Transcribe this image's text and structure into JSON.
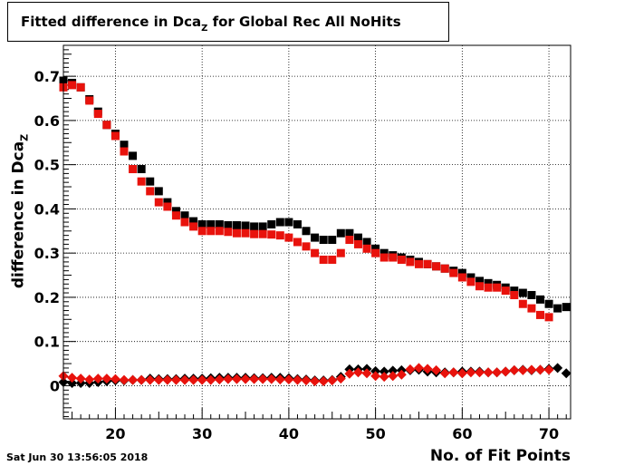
{
  "title": {
    "prefix": "Fitted difference in Dca",
    "sub": "Z",
    "suffix": " for Global Rec All NoHits"
  },
  "axis_label_y": {
    "main": "difference in Dca",
    "sub": "Z"
  },
  "axis_label_x": "No. of Fit Points",
  "timestamp": "Sat Jun 30 13:56:05 2018",
  "colors": {
    "black_series": "#000000",
    "red_series": "#e8120c",
    "grid": "#000000"
  },
  "chart_data": {
    "type": "scatter",
    "title": "Fitted difference in Dca_Z for Global Rec All NoHits",
    "xlabel": "No. of Fit Points",
    "ylabel": "difference in Dca_Z",
    "xlim": [
      14,
      72.5
    ],
    "ylim": [
      -0.075,
      0.77
    ],
    "grid": true,
    "x_ticks": [
      20,
      30,
      40,
      50,
      60,
      70
    ],
    "x_tick_labels": [
      "20",
      "30",
      "40",
      "50",
      "60",
      "70"
    ],
    "y_ticks": [
      0,
      0.1,
      0.2,
      0.3,
      0.4,
      0.5,
      0.6,
      0.7
    ],
    "y_tick_labels": [
      "0",
      "0.1",
      "0.2",
      "0.3",
      "0.4",
      "0.5",
      "0.6",
      "0.7"
    ],
    "series": [
      {
        "marker": "square",
        "color": "#000000",
        "x": [
          14,
          15,
          16,
          17,
          18,
          19,
          20,
          21,
          22,
          23,
          24,
          25,
          26,
          27,
          28,
          29,
          30,
          31,
          32,
          33,
          34,
          35,
          36,
          37,
          38,
          39,
          40,
          41,
          42,
          43,
          44,
          45,
          46,
          47,
          48,
          49,
          50,
          51,
          52,
          53,
          54,
          55,
          56,
          57,
          58,
          59,
          60,
          61,
          62,
          63,
          64,
          65,
          66,
          67,
          68,
          69,
          70,
          71,
          72
        ],
        "y": [
          0.69,
          0.685,
          0.675,
          0.648,
          0.62,
          0.59,
          0.57,
          0.545,
          0.52,
          0.49,
          0.462,
          0.44,
          0.415,
          0.395,
          0.385,
          0.372,
          0.365,
          0.365,
          0.365,
          0.363,
          0.363,
          0.362,
          0.36,
          0.36,
          0.365,
          0.37,
          0.37,
          0.365,
          0.35,
          0.335,
          0.33,
          0.33,
          0.345,
          0.345,
          0.335,
          0.325,
          0.31,
          0.3,
          0.295,
          0.29,
          0.285,
          0.28,
          0.275,
          0.27,
          0.265,
          0.26,
          0.255,
          0.245,
          0.237,
          0.232,
          0.228,
          0.222,
          0.215,
          0.21,
          0.205,
          0.195,
          0.185,
          0.175,
          0.178
        ]
      },
      {
        "marker": "square",
        "color": "#e8120c",
        "x": [
          14,
          15,
          16,
          17,
          18,
          19,
          20,
          21,
          22,
          23,
          24,
          25,
          26,
          27,
          28,
          29,
          30,
          31,
          32,
          33,
          34,
          35,
          36,
          37,
          38,
          39,
          40,
          41,
          42,
          43,
          44,
          45,
          46,
          47,
          48,
          49,
          50,
          51,
          52,
          53,
          54,
          55,
          56,
          57,
          58,
          59,
          60,
          61,
          62,
          63,
          64,
          65,
          66,
          67,
          68,
          69,
          70
        ],
        "y": [
          0.675,
          0.68,
          0.675,
          0.645,
          0.615,
          0.59,
          0.565,
          0.53,
          0.49,
          0.462,
          0.44,
          0.415,
          0.405,
          0.385,
          0.37,
          0.36,
          0.35,
          0.35,
          0.35,
          0.348,
          0.345,
          0.345,
          0.343,
          0.343,
          0.342,
          0.34,
          0.335,
          0.325,
          0.315,
          0.3,
          0.285,
          0.285,
          0.3,
          0.33,
          0.32,
          0.31,
          0.3,
          0.29,
          0.29,
          0.285,
          0.28,
          0.275,
          0.275,
          0.27,
          0.265,
          0.255,
          0.245,
          0.235,
          0.225,
          0.222,
          0.222,
          0.215,
          0.205,
          0.185,
          0.175,
          0.16,
          0.155
        ]
      },
      {
        "marker": "diamond",
        "color": "#000000",
        "x": [
          14,
          15,
          16,
          17,
          18,
          19,
          20,
          21,
          22,
          23,
          24,
          25,
          26,
          27,
          28,
          29,
          30,
          31,
          32,
          33,
          34,
          35,
          36,
          37,
          38,
          39,
          40,
          41,
          42,
          43,
          44,
          45,
          46,
          47,
          48,
          49,
          50,
          51,
          52,
          53,
          54,
          55,
          56,
          57,
          58,
          59,
          60,
          61,
          62,
          63,
          64,
          65,
          66,
          67,
          68,
          69,
          70,
          71,
          72
        ],
        "y": [
          0.008,
          0.006,
          0.006,
          0.006,
          0.008,
          0.01,
          0.012,
          0.012,
          0.013,
          0.013,
          0.016,
          0.015,
          0.015,
          0.015,
          0.016,
          0.016,
          0.016,
          0.017,
          0.018,
          0.018,
          0.018,
          0.018,
          0.017,
          0.017,
          0.018,
          0.018,
          0.017,
          0.015,
          0.014,
          0.012,
          0.012,
          0.013,
          0.02,
          0.037,
          0.037,
          0.038,
          0.033,
          0.032,
          0.034,
          0.035,
          0.035,
          0.036,
          0.032,
          0.03,
          0.03,
          0.03,
          0.032,
          0.032,
          0.032,
          0.03,
          0.03,
          0.032,
          0.035,
          0.036,
          0.035,
          0.036,
          0.038,
          0.04,
          0.028
        ]
      },
      {
        "marker": "diamond",
        "color": "#e8120c",
        "x": [
          14,
          15,
          16,
          17,
          18,
          19,
          20,
          21,
          22,
          23,
          24,
          25,
          26,
          27,
          28,
          29,
          30,
          31,
          32,
          33,
          34,
          35,
          36,
          37,
          38,
          39,
          40,
          41,
          42,
          43,
          44,
          45,
          46,
          47,
          48,
          49,
          50,
          51,
          52,
          53,
          54,
          55,
          56,
          57,
          58,
          59,
          60,
          61,
          62,
          63,
          64,
          65,
          66,
          67,
          68,
          69,
          70
        ],
        "y": [
          0.022,
          0.018,
          0.016,
          0.014,
          0.016,
          0.016,
          0.015,
          0.013,
          0.013,
          0.013,
          0.013,
          0.013,
          0.013,
          0.013,
          0.013,
          0.013,
          0.013,
          0.013,
          0.014,
          0.015,
          0.015,
          0.015,
          0.015,
          0.015,
          0.015,
          0.014,
          0.014,
          0.013,
          0.012,
          0.01,
          0.01,
          0.012,
          0.016,
          0.027,
          0.03,
          0.028,
          0.022,
          0.02,
          0.022,
          0.025,
          0.037,
          0.04,
          0.038,
          0.035,
          0.028,
          0.03,
          0.028,
          0.03,
          0.03,
          0.03,
          0.03,
          0.032,
          0.035,
          0.035,
          0.036,
          0.036,
          0.036
        ]
      }
    ]
  }
}
